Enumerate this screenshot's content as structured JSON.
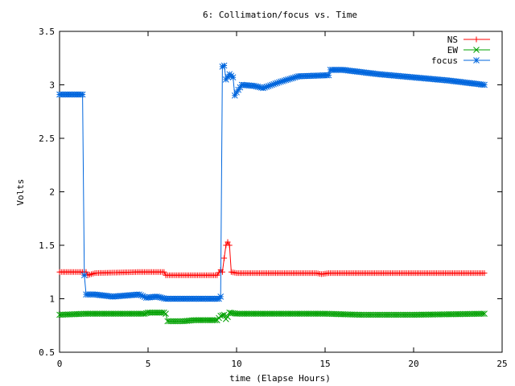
{
  "chart_data": {
    "type": "line",
    "title": "6: Collimation/focus vs. Time",
    "xlabel": "time (Elapse Hours)",
    "ylabel": "Volts",
    "xlim": [
      0,
      25
    ],
    "ylim": [
      0.5,
      3.5
    ],
    "xticks": [
      "0",
      "5",
      "10",
      "15",
      "20",
      "25"
    ],
    "yticks": [
      "0.5",
      "1",
      "1.5",
      "2",
      "2.5",
      "3",
      "3.5"
    ],
    "grid": false,
    "legend_position": "top-right",
    "marker_spacing_hours": 0.1,
    "series": [
      {
        "name": "NS",
        "color": "#ff0000",
        "marker": "plus",
        "points": [
          [
            0,
            1.25
          ],
          [
            1.0,
            1.25
          ],
          [
            1.5,
            1.25
          ],
          [
            1.6,
            1.22
          ],
          [
            2.0,
            1.24
          ],
          [
            4.5,
            1.25
          ],
          [
            5.9,
            1.25
          ],
          [
            6.0,
            1.22
          ],
          [
            8.9,
            1.22
          ],
          [
            9.1,
            1.27
          ],
          [
            9.2,
            1.25
          ],
          [
            9.3,
            1.38
          ],
          [
            9.4,
            1.5
          ],
          [
            9.5,
            1.53
          ],
          [
            9.6,
            1.5
          ],
          [
            9.7,
            1.25
          ],
          [
            10.0,
            1.24
          ],
          [
            14.5,
            1.24
          ],
          [
            14.8,
            1.23
          ],
          [
            15.2,
            1.24
          ],
          [
            24.0,
            1.24
          ]
        ]
      },
      {
        "name": "EW",
        "color": "#00a000",
        "marker": "x",
        "points": [
          [
            0,
            0.85
          ],
          [
            1.5,
            0.86
          ],
          [
            2.5,
            0.86
          ],
          [
            4.8,
            0.86
          ],
          [
            5.0,
            0.87
          ],
          [
            5.9,
            0.87
          ],
          [
            6.0,
            0.86
          ],
          [
            6.1,
            0.79
          ],
          [
            7.0,
            0.79
          ],
          [
            7.6,
            0.8
          ],
          [
            8.9,
            0.8
          ],
          [
            9.1,
            0.84
          ],
          [
            9.3,
            0.85
          ],
          [
            9.4,
            0.81
          ],
          [
            9.5,
            0.83
          ],
          [
            9.6,
            0.87
          ],
          [
            10.0,
            0.86
          ],
          [
            15.0,
            0.86
          ],
          [
            17.0,
            0.85
          ],
          [
            20.0,
            0.85
          ],
          [
            24.0,
            0.86
          ]
        ]
      },
      {
        "name": "focus",
        "color": "#0066dd",
        "marker": "star",
        "points": [
          [
            0,
            2.91
          ],
          [
            1.2,
            2.91
          ],
          [
            1.3,
            2.91
          ],
          [
            1.4,
            1.22
          ],
          [
            1.5,
            1.04
          ],
          [
            2.0,
            1.04
          ],
          [
            3.0,
            1.02
          ],
          [
            4.5,
            1.04
          ],
          [
            4.9,
            1.01
          ],
          [
            5.5,
            1.02
          ],
          [
            6.0,
            1.0
          ],
          [
            9.0,
            1.0
          ],
          [
            9.1,
            1.02
          ],
          [
            9.2,
            3.17
          ],
          [
            9.3,
            3.18
          ],
          [
            9.4,
            3.05
          ],
          [
            9.6,
            3.1
          ],
          [
            9.8,
            3.07
          ],
          [
            9.9,
            2.9
          ],
          [
            10.0,
            2.93
          ],
          [
            10.3,
            3.0
          ],
          [
            11.0,
            2.99
          ],
          [
            11.5,
            2.97
          ],
          [
            12.5,
            3.03
          ],
          [
            13.5,
            3.08
          ],
          [
            15.2,
            3.09
          ],
          [
            15.3,
            3.14
          ],
          [
            16.0,
            3.14
          ],
          [
            18.0,
            3.1
          ],
          [
            20.0,
            3.07
          ],
          [
            22.0,
            3.04
          ],
          [
            24.0,
            3.0
          ]
        ]
      }
    ]
  }
}
